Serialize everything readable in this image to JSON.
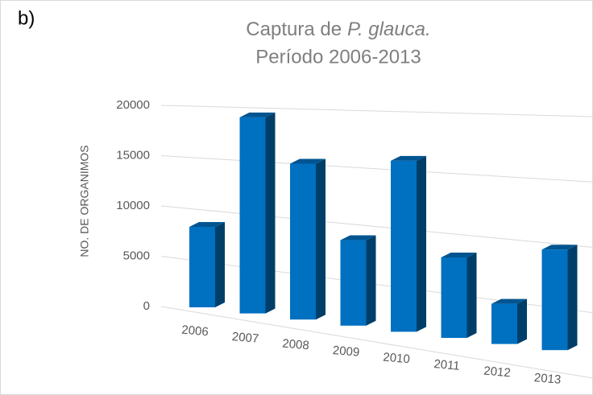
{
  "panel_label": "b)",
  "chart_data": {
    "type": "bar3d",
    "title_line1": [
      "Captura de",
      "P. glauca."
    ],
    "title_line2": "Período 2006-2013",
    "y_label": "NO. DE ORGANIMOS",
    "categories": [
      "2006",
      "2007",
      "2008",
      "2009",
      "2010",
      "2011",
      "2012",
      "2013"
    ],
    "values": [
      8000,
      19500,
      15500,
      8500,
      17000,
      8000,
      4000,
      10000
    ],
    "color": "#0070c0",
    "ylim": [
      0,
      20000
    ],
    "yticks": [
      0,
      5000,
      10000,
      15000,
      20000
    ],
    "grid": true
  }
}
